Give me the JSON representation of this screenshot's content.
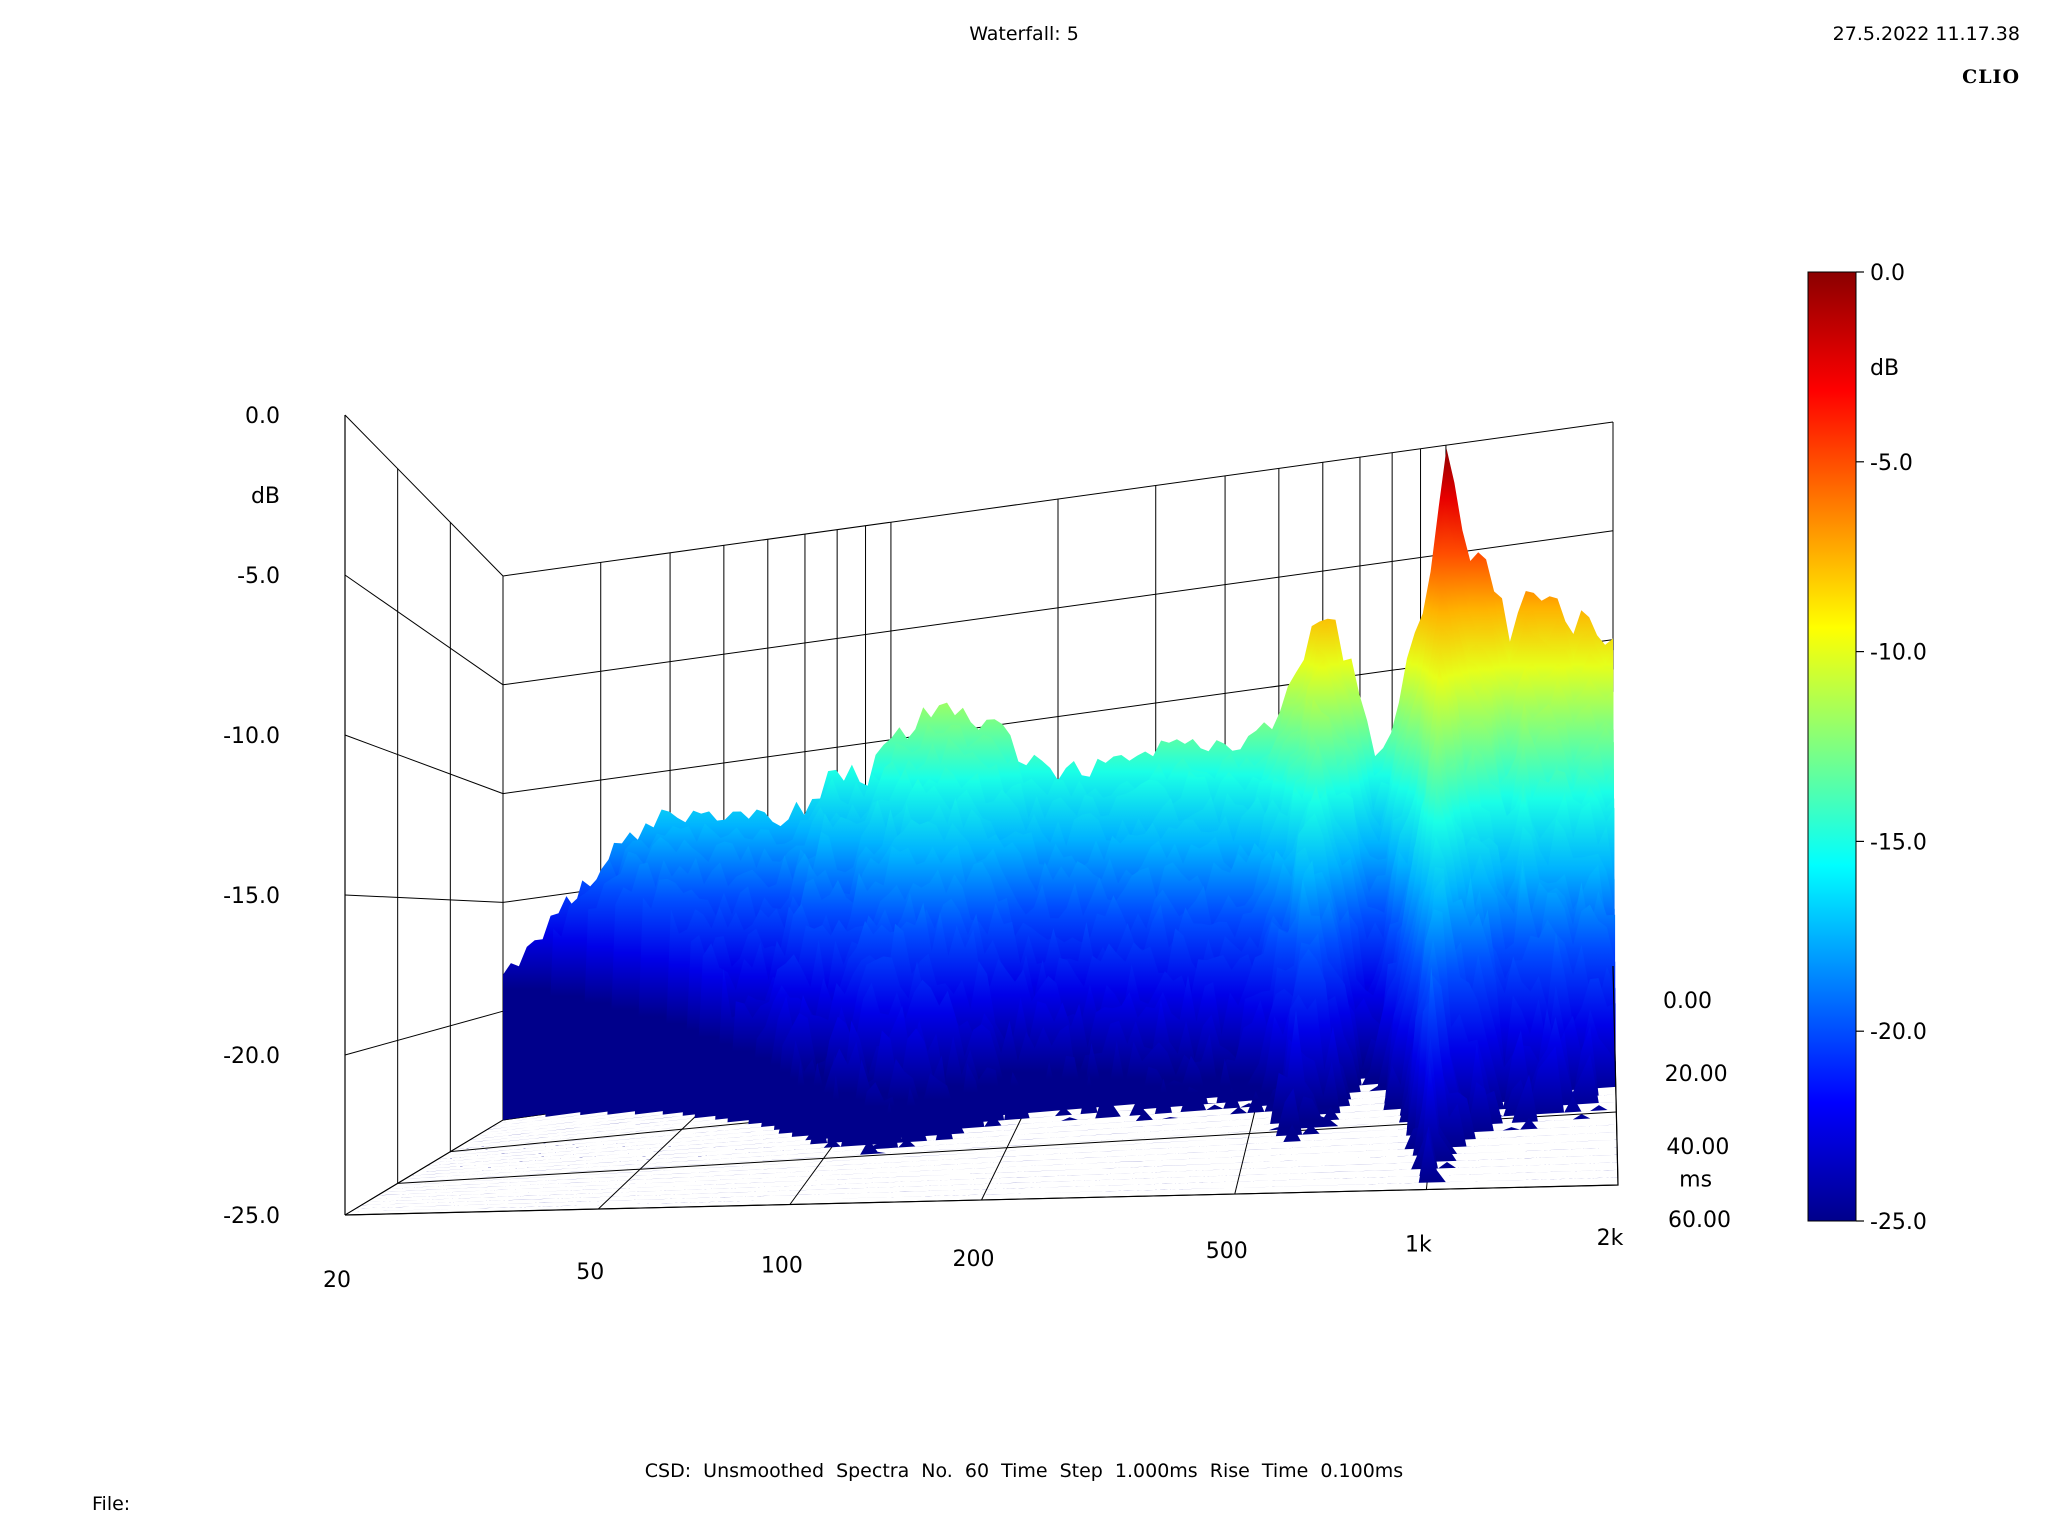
{
  "header": {
    "title": "Waterfall: 5",
    "timestamp": "27.5.2022 11.17.38",
    "brand": "CLIO"
  },
  "footer": {
    "info": "CSD:   Unsmoothed   Spectra No. 60   Time Step 1.000ms   Rise Time 0.100ms",
    "file_label": "File:"
  },
  "chart_data": {
    "type": "waterfall",
    "title": "Waterfall: 5",
    "z_axis": {
      "label": "dB",
      "ticks": [
        0.0,
        -5.0,
        -10.0,
        -15.0,
        -20.0,
        -25.0
      ],
      "tick_labels": [
        "0.0",
        "-5.0",
        "-10.0",
        "-15.0",
        "-20.0",
        "-25.0"
      ],
      "range": [
        -25,
        0
      ]
    },
    "x_axis": {
      "scale": "log",
      "range": [
        20,
        2000
      ],
      "ticks": [
        20,
        50,
        100,
        200,
        500,
        1000,
        2000
      ],
      "tick_labels": [
        "20",
        "50",
        "100",
        "200",
        "500",
        "1k",
        "2k"
      ]
    },
    "t_axis": {
      "label": "ms",
      "range": [
        0,
        60
      ],
      "ticks": [
        0,
        20,
        40,
        60
      ],
      "tick_labels": [
        "0.00",
        "20.00",
        "40.00",
        "60.00"
      ]
    },
    "colorbar": {
      "label": "dB",
      "range": [
        -25,
        0
      ],
      "ticks": [
        0.0,
        -5.0,
        -10.0,
        -15.0,
        -20.0,
        -25.0
      ],
      "tick_labels": [
        "0.0",
        "-5.0",
        "-10.0",
        "-15.0",
        "-20.0",
        "-25.0"
      ],
      "colormap": [
        "#00008b",
        "#0000ff",
        "#0080ff",
        "#00ffff",
        "#80ff80",
        "#ffff00",
        "#ff8000",
        "#ff0000",
        "#8b0000"
      ]
    },
    "first_spectrum_t0": {
      "freq_hz": [
        20,
        25,
        30,
        35,
        40,
        50,
        60,
        70,
        80,
        90,
        100,
        120,
        140,
        160,
        180,
        200,
        250,
        300,
        350,
        400,
        450,
        500,
        550,
        600,
        650,
        700,
        750,
        800,
        850,
        900,
        950,
        1000,
        1100,
        1200,
        1300,
        1400,
        1500,
        1600,
        1700,
        1800,
        1900,
        2000
      ],
      "level_db": [
        -18.5,
        -16,
        -14,
        -12.5,
        -12,
        -12.5,
        -13,
        -12.5,
        -11,
        -11.5,
        -10,
        -9,
        -9.5,
        -10.5,
        -12,
        -12.5,
        -12.5,
        -12.3,
        -12,
        -12.4,
        -12.3,
        -11.2,
        -9,
        -6.5,
        -8.5,
        -10.5,
        -14,
        -12.5,
        -10,
        -8,
        -4.5,
        -0.5,
        -5,
        -6,
        -9,
        -7,
        -8.5,
        -7.5,
        -9.5,
        -8.5,
        -9.5,
        -10
      ]
    },
    "series": [
      {
        "time_ms": 0
      },
      {
        "time_ms": 60
      }
    ],
    "note_peaks": [
      {
        "freq_hz": 100,
        "level_db": -10.0
      },
      {
        "freq_hz": 600,
        "level_db": -6.5
      },
      {
        "freq_hz": 1000,
        "level_db": -0.5
      }
    ]
  }
}
